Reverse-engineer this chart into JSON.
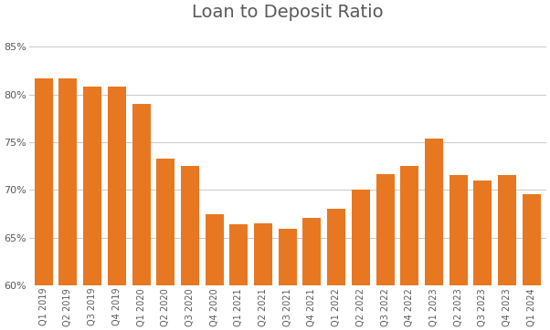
{
  "title": "Loan to Deposit Ratio",
  "categories": [
    "Q1 2019",
    "Q2 2019",
    "Q3 2019",
    "Q4 2019",
    "Q1 2020",
    "Q2 2020",
    "Q3 2020",
    "Q4 2020",
    "Q1 2021",
    "Q2 2021",
    "Q3 2021",
    "Q4 2021",
    "Q1 2022",
    "Q2 2022",
    "Q3 2022",
    "Q4 2022",
    "Q1 2023",
    "Q2 2023",
    "Q3 2023",
    "Q4 2023",
    "Q1 2024"
  ],
  "values": [
    0.817,
    0.817,
    0.808,
    0.808,
    0.79,
    0.733,
    0.725,
    0.675,
    0.664,
    0.665,
    0.659,
    0.671,
    0.68,
    0.7,
    0.717,
    0.725,
    0.754,
    0.716,
    0.71,
    0.716,
    0.696
  ],
  "bar_color": "#E87722",
  "ylim": [
    0.6,
    0.87
  ],
  "yticks": [
    0.6,
    0.65,
    0.7,
    0.75,
    0.8,
    0.85
  ],
  "title_fontsize": 14,
  "tick_fontsize": 7,
  "ytick_fontsize": 8,
  "background_color": "#ffffff",
  "grid_color": "#cccccc",
  "title_color": "#595959",
  "tick_color": "#595959"
}
